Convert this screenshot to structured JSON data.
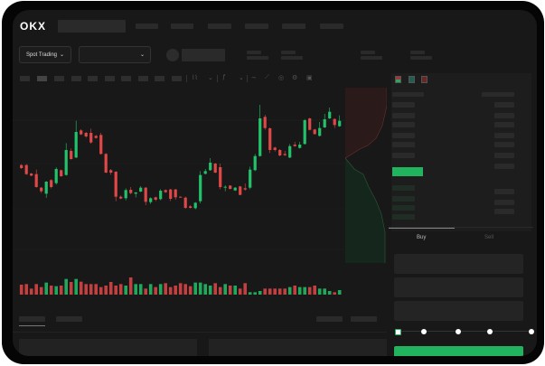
{
  "header": {
    "logo": "OKX"
  },
  "toolbar": {
    "market_type": "Spot Trading",
    "pair_select": "",
    "chevron": "⌄"
  },
  "orderbook": {
    "view_icons": [
      "orderbook-both-icon",
      "orderbook-buy-icon",
      "orderbook-sell-icon"
    ]
  },
  "trade": {
    "tabs": [
      "Buy",
      "Sell"
    ],
    "slider_percent": 0
  },
  "colors": {
    "up": "#22c26a",
    "down": "#e04848",
    "background": "#181818",
    "accent": "#22b35e"
  },
  "chart_data": {
    "type": "candlestick",
    "candles": [
      [
        185,
        175,
        188,
        172
      ],
      [
        185,
        155,
        188,
        152
      ],
      [
        157,
        150,
        159,
        148
      ],
      [
        155,
        112,
        170,
        110
      ],
      [
        110,
        98,
        112,
        92
      ],
      [
        90,
        130,
        132,
        76
      ],
      [
        135,
        112,
        138,
        108
      ],
      [
        125,
        172,
        178,
        120
      ],
      [
        168,
        148,
        170,
        146
      ],
      [
        152,
        235,
        258,
        150
      ],
      [
        232,
        205,
        240,
        203
      ],
      [
        210,
        295,
        332,
        208
      ],
      [
        300,
        287,
        304,
        285
      ],
      [
        292,
        280,
        295,
        276
      ],
      [
        292,
        260,
        306,
        256
      ],
      [
        282,
        275,
        285,
        273
      ],
      [
        285,
        222,
        292,
        220
      ],
      [
        222,
        160,
        225,
        158
      ],
      [
        168,
        160,
        172,
        153
      ],
      [
        163,
        80,
        165,
        65
      ],
      [
        80,
        74,
        84,
        72
      ],
      [
        75,
        102,
        108,
        68
      ],
      [
        103,
        92,
        112,
        88
      ],
      [
        90,
        94,
        96,
        78
      ],
      [
        97,
        110,
        115,
        95
      ],
      [
        110,
        63,
        112,
        52
      ],
      [
        62,
        75,
        78,
        56
      ],
      [
        78,
        70,
        80,
        65
      ],
      [
        72,
        100,
        105,
        68
      ],
      [
        102,
        95,
        104,
        93
      ],
      [
        104,
        73,
        106,
        66
      ],
      [
        104,
        78,
        106,
        70
      ],
      [
        80,
        78,
        81,
        77
      ],
      [
        77,
        43,
        80,
        40
      ],
      [
        48,
        43,
        52,
        41
      ],
      [
        42,
        60,
        62,
        38
      ],
      [
        65,
        152,
        165,
        58
      ],
      [
        156,
        165,
        172,
        154
      ],
      [
        168,
        193,
        208,
        166
      ],
      [
        190,
        160,
        192,
        158
      ],
      [
        178,
        112,
        190,
        105
      ],
      [
        110,
        113,
        118,
        98
      ],
      [
        117,
        106,
        118,
        104
      ],
      [
        101,
        110,
        112,
        99
      ],
      [
        114,
        86,
        116,
        85
      ],
      [
        108,
        104,
        124,
        100
      ],
      [
        110,
        170,
        180,
        105
      ],
      [
        168,
        215,
        222,
        165
      ],
      [
        215,
        340,
        385,
        213
      ],
      [
        345,
        308,
        352,
        302
      ],
      [
        307,
        235,
        310,
        225
      ],
      [
        243,
        235,
        246,
        230
      ],
      [
        235,
        217,
        238,
        214
      ],
      [
        222,
        218,
        232,
        215
      ],
      [
        210,
        248,
        255,
        208
      ],
      [
        253,
        248,
        262,
        246
      ],
      [
        242,
        253,
        262,
        240
      ],
      [
        255,
        334,
        338,
        253
      ],
      [
        340,
        302,
        342,
        300
      ],
      [
        303,
        288,
        305,
        286
      ],
      [
        282,
        308,
        328,
        280
      ],
      [
        310,
        337,
        355,
        308
      ],
      [
        340,
        362,
        376,
        338
      ],
      [
        338,
        318,
        340,
        308
      ],
      [
        314,
        332,
        350,
        312
      ]
    ],
    "volumes": [
      33,
      35,
      20,
      35,
      25,
      40,
      30,
      28,
      30,
      52,
      42,
      52,
      43,
      35,
      35,
      35,
      25,
      30,
      42,
      30,
      35,
      30,
      57,
      35,
      35,
      20,
      35,
      25,
      35,
      38,
      25,
      30,
      38,
      35,
      28,
      40,
      40,
      35,
      30,
      38,
      25,
      35,
      30,
      30,
      20,
      38,
      8,
      8,
      12,
      20,
      20,
      20,
      20,
      20,
      25,
      30,
      25,
      25,
      25,
      30,
      20,
      20,
      12,
      8,
      15
    ]
  }
}
